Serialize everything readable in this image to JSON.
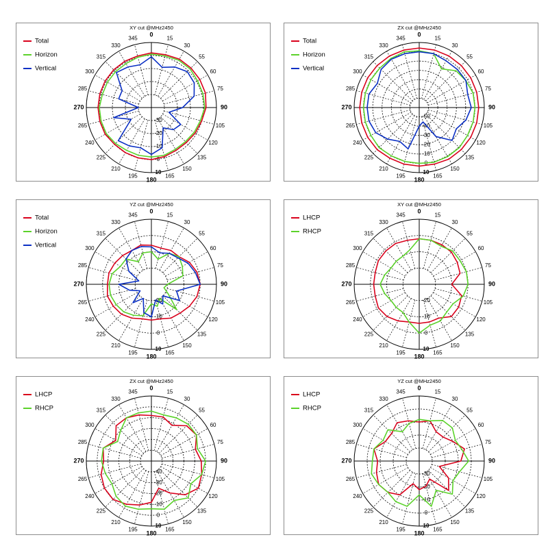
{
  "chart_data": [
    {
      "type": "polar",
      "title": "XY cut @MHz2450",
      "angle_labels": [
        "0",
        "15",
        "30",
        "55",
        "60",
        "75",
        "90",
        "105",
        "120",
        "135",
        "150",
        "165",
        "180",
        "195",
        "210",
        "225",
        "240",
        "265",
        "270",
        "285",
        "300",
        "315",
        "330",
        "345"
      ],
      "radial_labels": [
        "-30",
        "-20",
        "-10",
        "0",
        "10"
      ],
      "rlim": [
        -40,
        10
      ],
      "legend": "top-left",
      "series": [
        {
          "name": "Total",
          "color": "#d9001b",
          "values": [
            2,
            2,
            3,
            3,
            3,
            3,
            2,
            0,
            -1,
            -2,
            -2,
            -1,
            0,
            0,
            0,
            0,
            1,
            1,
            1,
            1,
            1,
            1,
            1,
            1
          ]
        },
        {
          "name": "Horizon",
          "color": "#5bd22a",
          "values": [
            1,
            1,
            2,
            2,
            1,
            1,
            1,
            -1,
            -2,
            -3,
            -3,
            -2,
            -2,
            -2,
            -2,
            -1,
            0,
            0,
            0,
            -1,
            -1,
            -1,
            -1,
            0
          ]
        },
        {
          "name": "Vertical",
          "color": "#0a2fc4",
          "values": [
            -1,
            -8,
            -4,
            -1,
            -2,
            -6,
            -16,
            -26,
            -14,
            -16,
            -22,
            -8,
            -4,
            -8,
            -6,
            -4,
            -22,
            -10,
            -30,
            -14,
            -14,
            -2,
            -4,
            -6
          ]
        }
      ]
    },
    {
      "type": "polar",
      "title": "ZX cut @MHz2450",
      "angle_labels": [
        "0",
        "15",
        "30",
        "55",
        "60",
        "75",
        "90",
        "105",
        "120",
        "135",
        "150",
        "165",
        "180",
        "195",
        "210",
        "225",
        "240",
        "265",
        "270",
        "285",
        "300",
        "315",
        "330",
        "345"
      ],
      "radial_labels": [
        "-50",
        "-40",
        "-30",
        "-20",
        "-10",
        "0",
        "10"
      ],
      "rlim": [
        -60,
        10
      ],
      "legend": "top-left",
      "series": [
        {
          "name": "Total",
          "color": "#d9001b",
          "values": [
            4,
            4,
            4,
            4,
            4,
            4,
            4,
            4,
            4,
            4,
            4,
            3,
            3,
            3,
            3,
            4,
            4,
            4,
            4,
            4,
            4,
            4,
            4,
            4
          ]
        },
        {
          "name": "Horizon",
          "color": "#5bd22a",
          "values": [
            1,
            0,
            -12,
            -4,
            -2,
            0,
            0,
            0,
            0,
            1,
            1,
            1,
            0,
            0,
            0,
            1,
            0,
            0,
            0,
            0,
            0,
            0,
            1,
            2
          ]
        },
        {
          "name": "Vertical",
          "color": "#0a2fc4",
          "values": [
            0,
            0,
            -2,
            -2,
            -2,
            -6,
            -4,
            -8,
            -14,
            -10,
            -24,
            -44,
            -40,
            -14,
            -18,
            -12,
            -6,
            -4,
            -4,
            -4,
            -8,
            -2,
            0,
            0
          ]
        }
      ]
    },
    {
      "type": "polar",
      "title": "YZ cut @MHz2450",
      "angle_labels": [
        "0",
        "15",
        "30",
        "55",
        "60",
        "75",
        "90",
        "105",
        "120",
        "135",
        "150",
        "165",
        "180",
        "195",
        "210",
        "225",
        "240",
        "265",
        "270",
        "285",
        "300",
        "315",
        "330",
        "345"
      ],
      "radial_labels": [
        "-20",
        "-10",
        "0",
        "10"
      ],
      "rlim": [
        -30,
        10
      ],
      "legend": "top-left",
      "series": [
        {
          "name": "Total",
          "color": "#d9001b",
          "values": [
            -6,
            -7,
            -6,
            -6,
            -3,
            -1,
            0,
            -1,
            -3,
            -5,
            -6,
            -8,
            -8,
            -8,
            -6,
            -4,
            -3,
            -2,
            -3,
            -3,
            -4,
            -5,
            -6,
            -5
          ]
        },
        {
          "name": "Horizon",
          "color": "#5bd22a",
          "values": [
            -10,
            -14,
            -8,
            -6,
            -8,
            -10,
            -20,
            -22,
            -18,
            -8,
            -20,
            -16,
            -18,
            -10,
            -8,
            -6,
            -5,
            -4,
            -4,
            -5,
            -8,
            -8,
            -14,
            -10
          ]
        },
        {
          "name": "Vertical",
          "color": "#0a2fc4",
          "values": [
            -7,
            -10,
            -8,
            -7,
            -4,
            -2,
            0,
            -14,
            -10,
            -20,
            -16,
            -20,
            -10,
            -12,
            -20,
            -14,
            -22,
            -16,
            -10,
            -22,
            -14,
            -8,
            -6,
            -6
          ]
        }
      ]
    },
    {
      "type": "polar",
      "title": "XY cut @MHz2450",
      "angle_labels": [
        "0",
        "15",
        "30",
        "55",
        "60",
        "75",
        "90",
        "105",
        "120",
        "135",
        "150",
        "165",
        "180",
        "195",
        "210",
        "225",
        "240",
        "265",
        "270",
        "285",
        "300",
        "315",
        "330",
        "345"
      ],
      "radial_labels": [
        "-20",
        "-10",
        "0",
        "10"
      ],
      "rlim": [
        -30,
        10
      ],
      "legend": "top-left",
      "series": [
        {
          "name": "LHCP",
          "color": "#d9001b",
          "values": [
            -2,
            -2,
            -2,
            -2,
            -3,
            -4,
            -10,
            -3,
            -2,
            -2,
            -6,
            -6,
            -6,
            -6,
            -4,
            -2,
            -1,
            -2,
            -2,
            -2,
            -1,
            -1,
            -1,
            -2
          ]
        },
        {
          "name": "RHCP",
          "color": "#5bd22a",
          "values": [
            -2,
            -2,
            -3,
            -1,
            -1,
            0,
            0,
            -2,
            -6,
            -6,
            -4,
            -4,
            0,
            -6,
            -10,
            -10,
            -10,
            -8,
            -6,
            -8,
            -10,
            -10,
            -10,
            -8
          ]
        }
      ]
    },
    {
      "type": "polar",
      "title": "ZX cut @MHz2450",
      "angle_labels": [
        "0",
        "15",
        "30",
        "55",
        "60",
        "75",
        "90",
        "105",
        "120",
        "135",
        "150",
        "165",
        "180",
        "195",
        "210",
        "225",
        "240",
        "265",
        "270",
        "285",
        "300",
        "315",
        "330",
        "345"
      ],
      "radial_labels": [
        "-40",
        "-30",
        "-20",
        "-10",
        "0",
        "10"
      ],
      "rlim": [
        -50,
        10
      ],
      "legend": "top-left",
      "series": [
        {
          "name": "LHCP",
          "color": "#d9001b",
          "values": [
            -8,
            -8,
            -12,
            -4,
            -2,
            -8,
            -4,
            -2,
            0,
            -6,
            -16,
            -24,
            -12,
            -8,
            -4,
            0,
            0,
            -2,
            -6,
            -4,
            -12,
            -4,
            -4,
            -6
          ]
        },
        {
          "name": "RHCP",
          "color": "#5bd22a",
          "values": [
            -4,
            -6,
            -4,
            -2,
            -2,
            -6,
            0,
            -2,
            -8,
            -2,
            -8,
            -4,
            -6,
            -4,
            -2,
            -4,
            -8,
            -6,
            -4,
            -4,
            -14,
            -10,
            -4,
            -4
          ]
        }
      ]
    },
    {
      "type": "polar",
      "title": "YZ cut @MHz2450",
      "angle_labels": [
        "0",
        "15",
        "30",
        "55",
        "60",
        "75",
        "90",
        "105",
        "120",
        "135",
        "150",
        "165",
        "180",
        "195",
        "210",
        "225",
        "240",
        "265",
        "270",
        "285",
        "300",
        "315",
        "330",
        "345"
      ],
      "radial_labels": [
        "-30",
        "-20",
        "-10",
        "0",
        "10"
      ],
      "rlim": [
        -40,
        10
      ],
      "legend": "top-left",
      "series": [
        {
          "name": "LHCP",
          "color": "#d9001b",
          "values": [
            -10,
            -8,
            -14,
            -14,
            -10,
            -4,
            -8,
            -24,
            -14,
            -8,
            -24,
            -20,
            -18,
            -22,
            -10,
            -6,
            -4,
            -6,
            -8,
            -4,
            -10,
            -10,
            -6,
            -8
          ]
        },
        {
          "name": "RHCP",
          "color": "#5bd22a",
          "values": [
            -8,
            -8,
            -4,
            -4,
            -8,
            -6,
            -2,
            -8,
            -10,
            -4,
            -14,
            -4,
            -14,
            -4,
            -4,
            -6,
            -4,
            -2,
            -4,
            -4,
            -8,
            -6,
            -14,
            -10
          ]
        }
      ]
    }
  ]
}
